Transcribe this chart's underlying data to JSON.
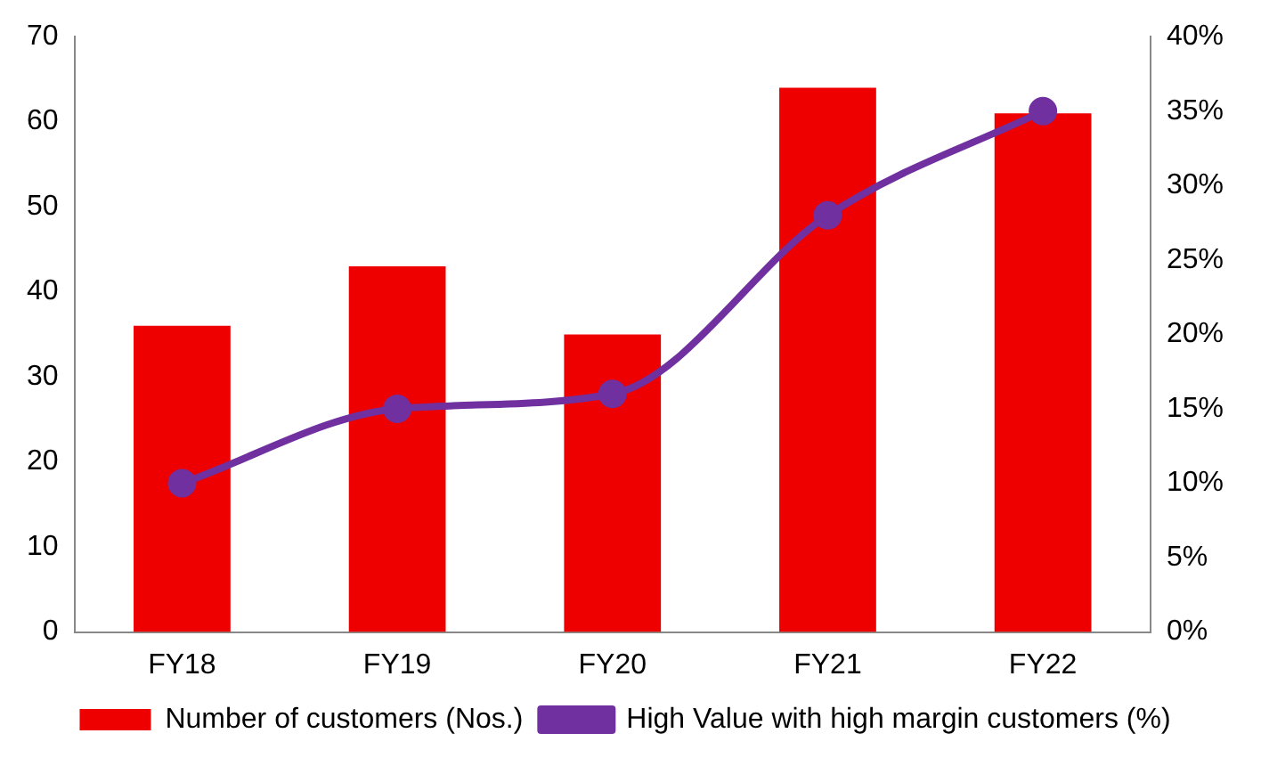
{
  "chart_data": {
    "type": "bar",
    "categories": [
      "FY18",
      "FY19",
      "FY20",
      "FY21",
      "FY22"
    ],
    "series": [
      {
        "name": "Number of customers (Nos.)",
        "color": "#ee0000",
        "values": [
          36,
          43,
          35,
          64,
          61
        ]
      },
      {
        "name": "High Value with high margin customers (%)",
        "type": "line",
        "axis": "y2",
        "color": "#7030a0",
        "values": [
          10,
          15,
          16,
          28,
          35
        ]
      }
    ],
    "ylim": [
      0,
      70
    ],
    "yticks": [
      0,
      10,
      20,
      30,
      40,
      50,
      60,
      70
    ],
    "y2lim": [
      0,
      40
    ],
    "y2ticks": [
      {
        "value": 0,
        "label": "0%"
      },
      {
        "value": 5,
        "label": "5%"
      },
      {
        "value": 10,
        "label": "10%"
      },
      {
        "value": 15,
        "label": "15%"
      },
      {
        "value": 20,
        "label": "20%"
      },
      {
        "value": 25,
        "label": "25%"
      },
      {
        "value": 30,
        "label": "30%"
      },
      {
        "value": 35,
        "label": "35%"
      },
      {
        "value": 40,
        "label": "40%"
      }
    ],
    "legend": "bottom",
    "grid": false,
    "marker": "circle",
    "line_style": "solid"
  }
}
